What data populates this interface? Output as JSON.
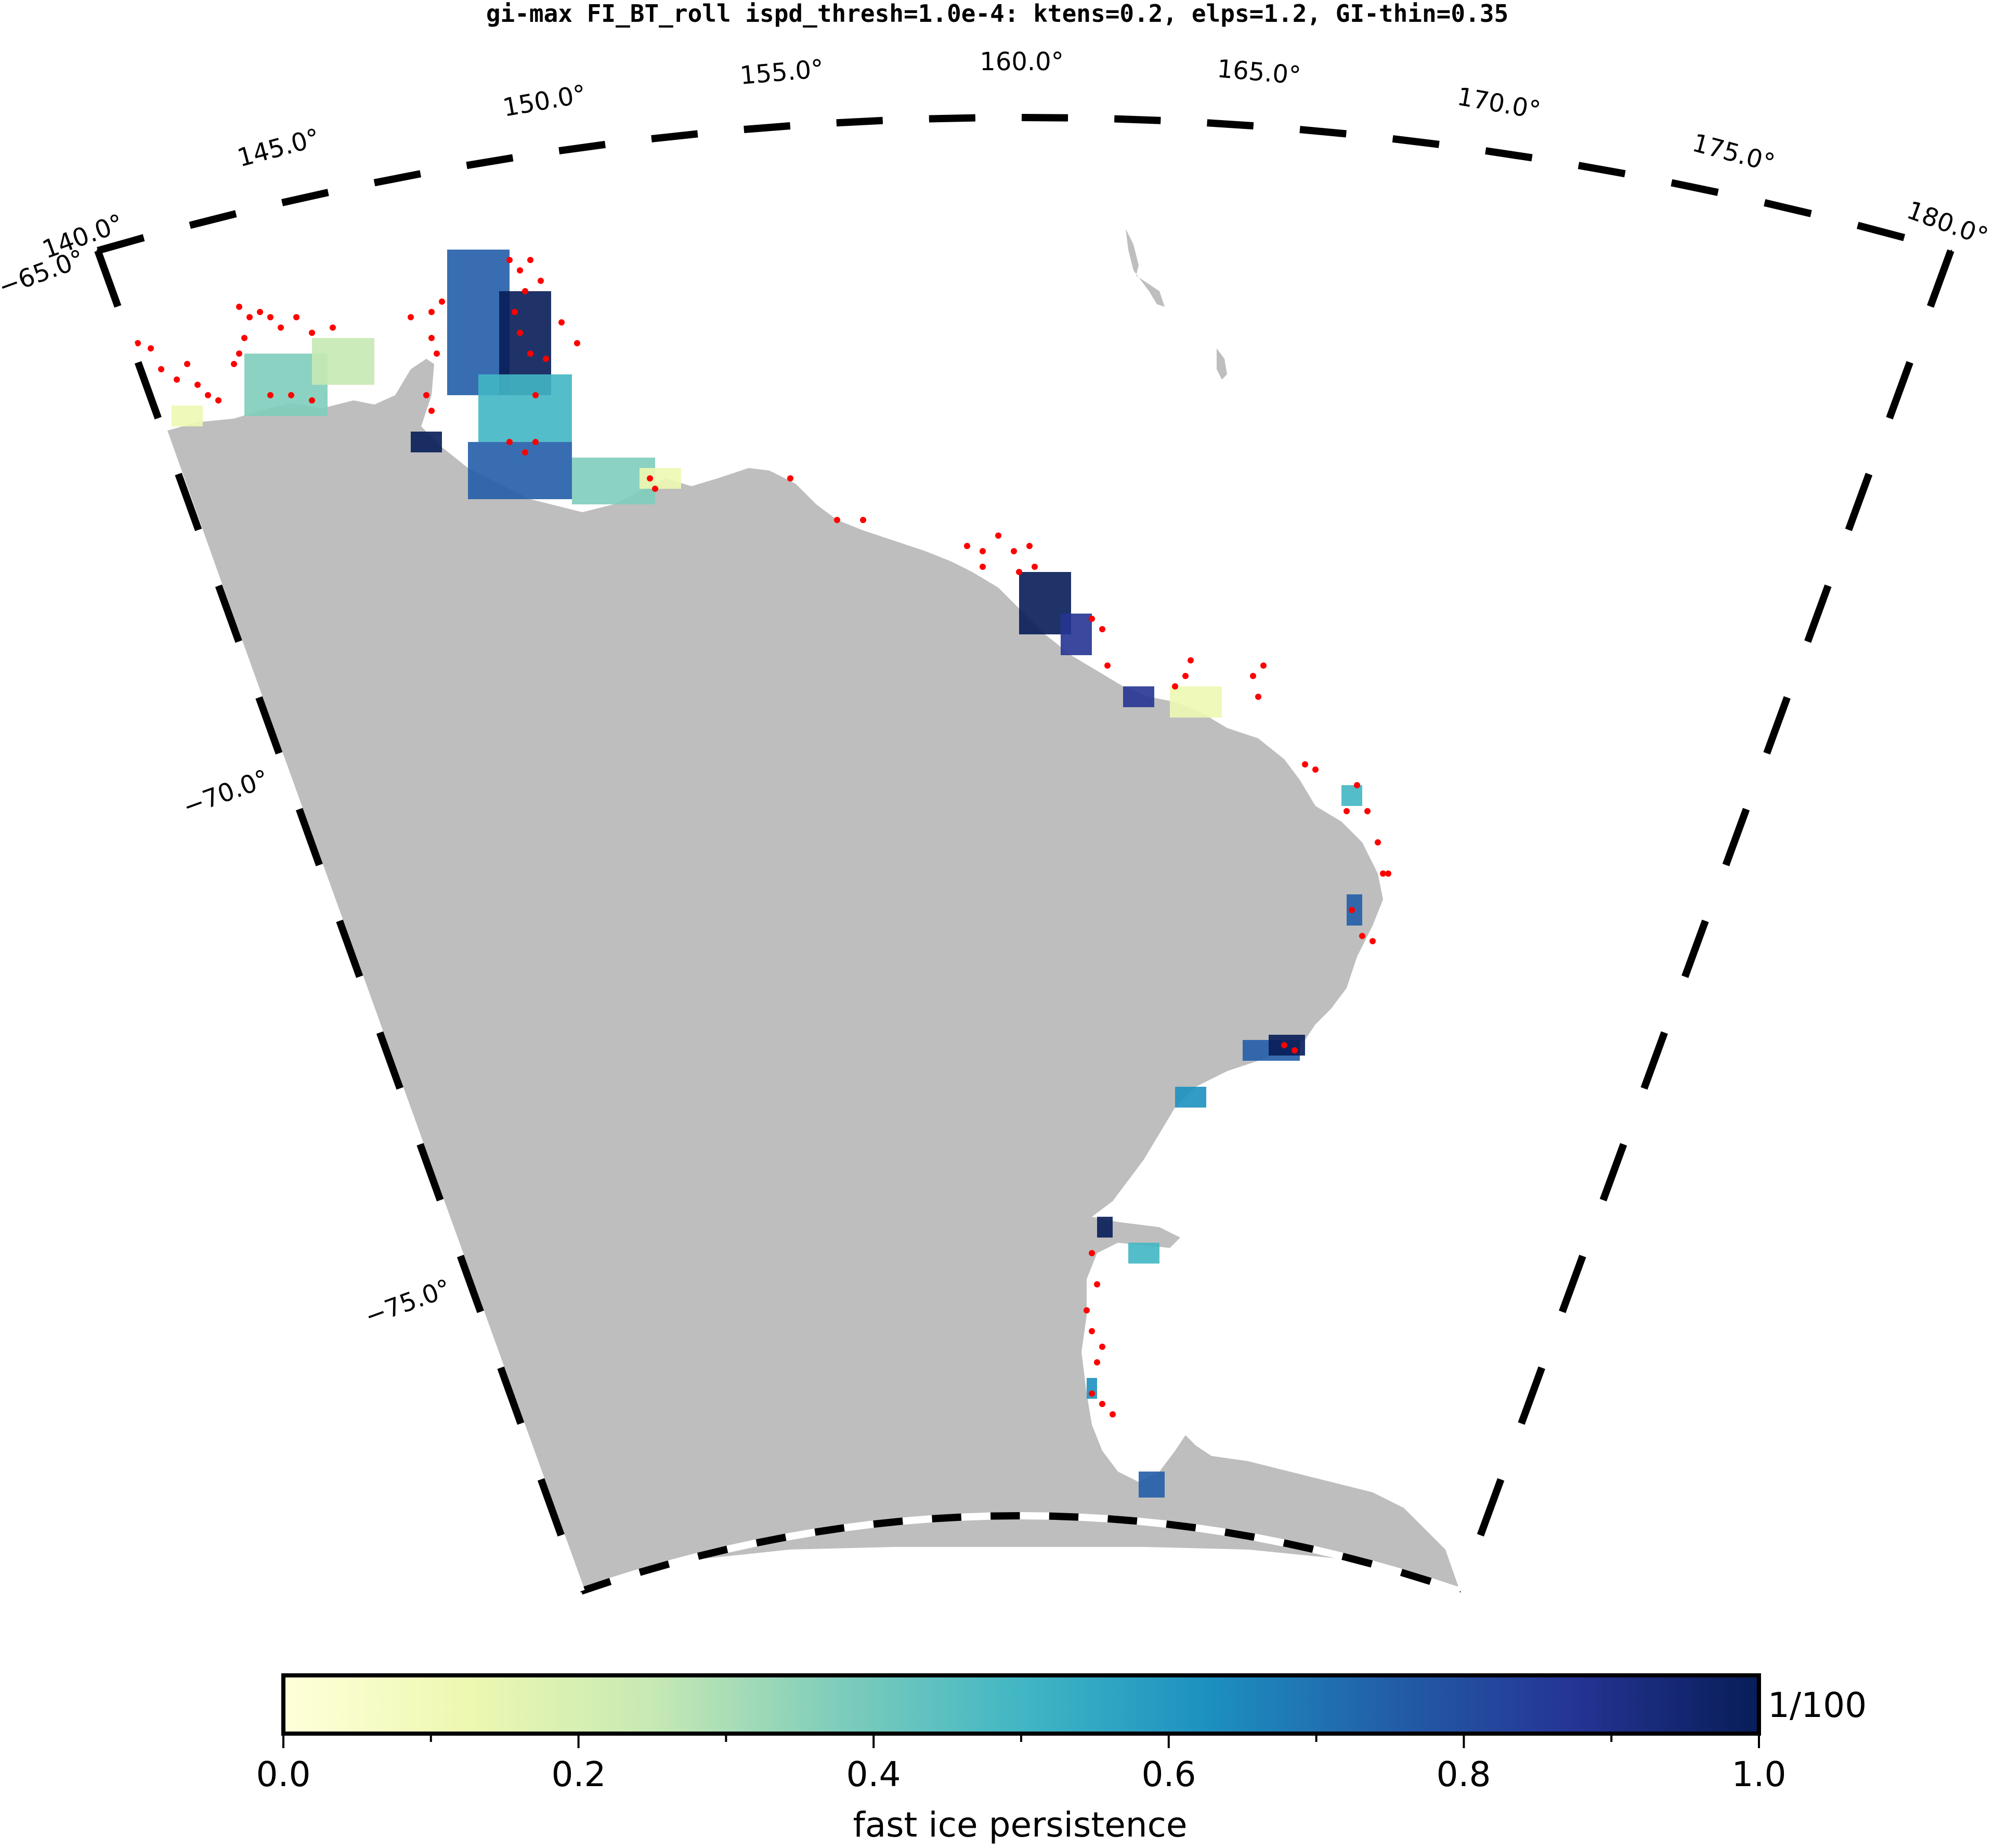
{
  "title": "gi-max FI_BT_roll ispd_thresh=1.0e-4: ktens=0.2, elps=1.2, GI-thin=0.35",
  "map": {
    "projection": "conic sector",
    "lon_range": [
      140,
      180
    ],
    "lat_range": [
      -78,
      -65
    ],
    "lon_labels": [
      "140.0°",
      "145.0°",
      "150.0°",
      "155.0°",
      "160.0°",
      "165.0°",
      "170.0°",
      "175.0°",
      "180.0°"
    ],
    "lat_labels": [
      "−65.0°",
      "−70.0°",
      "−75.0°"
    ],
    "land_color": "#bebebe",
    "ocean_color": "#ffffff",
    "grounded_iceberg_marker_color": "#ff0000"
  },
  "colorbar": {
    "label": "fast ice persistence",
    "tick_labels": [
      "0.0",
      "0.2",
      "0.4",
      "0.6",
      "0.8",
      "1.0"
    ],
    "range": [
      0,
      1
    ],
    "scale_note": "1/100",
    "colormap": "YlGnBu",
    "colors": [
      "#ffffd9",
      "#edf8b1",
      "#c7e9b4",
      "#7fcdbb",
      "#41b6c4",
      "#1d91c0",
      "#225ea8",
      "#253494",
      "#081d58"
    ]
  }
}
